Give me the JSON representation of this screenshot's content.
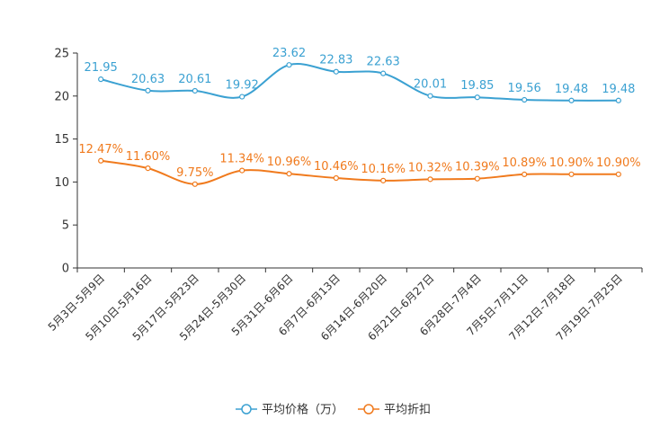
{
  "chart_data": {
    "type": "line",
    "title": "",
    "xlabel": "",
    "ylabel": "",
    "ylim": [
      0,
      25
    ],
    "yticks": [
      0,
      5,
      10,
      15,
      20,
      25
    ],
    "categories": [
      "5月3日-5月9日",
      "5月10日-5月16日",
      "5月17日-5月23日",
      "5月24日-5月30日",
      "5月31日-6月6日",
      "6月7日-6月13日",
      "6月14日-6月20日",
      "6月21日-6月27日",
      "6月28日-7月4日",
      "7月5日-7月11日",
      "7月12日-7月18日",
      "7月19日-7月25日"
    ],
    "series": [
      {
        "name": "平均价格（万）",
        "color": "#3ba1d2",
        "values": [
          21.95,
          20.63,
          20.61,
          19.92,
          23.62,
          22.83,
          22.63,
          20.01,
          19.85,
          19.56,
          19.48,
          19.48
        ],
        "labels": [
          "21.95",
          "20.63",
          "20.61",
          "19.92",
          "23.62",
          "22.83",
          "22.63",
          "20.01",
          "19.85",
          "19.56",
          "19.48",
          "19.48"
        ]
      },
      {
        "name": "平均折扣",
        "color": "#f07a1d",
        "values": [
          12.47,
          11.6,
          9.75,
          11.34,
          10.96,
          10.46,
          10.16,
          10.32,
          10.39,
          10.89,
          10.9,
          10.9
        ],
        "labels": [
          "12.47%",
          "11.60%",
          "9.75%",
          "11.34%",
          "10.96%",
          "10.46%",
          "10.16%",
          "10.32%",
          "10.39%",
          "10.89%",
          "10.90%",
          "10.90%"
        ]
      }
    ],
    "legend_position": "bottom-center"
  }
}
